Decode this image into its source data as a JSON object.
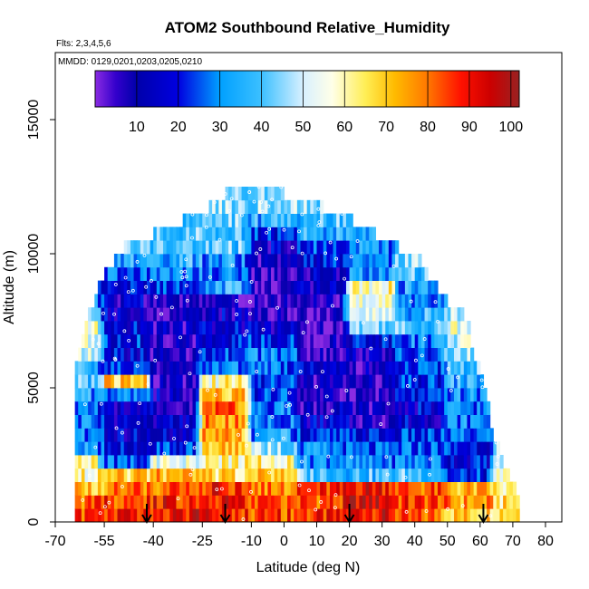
{
  "chart_data": {
    "type": "heatmap",
    "title": "ATOM2 Southbound Relative_Humidity",
    "flights_text": "Flts: 2,3,4,5,6",
    "dates_text": "MMDD: 0129,0201,0203,0205,0210",
    "xlabel": "Latitude (deg N)",
    "ylabel": "Altitude (m)",
    "xlim": [
      -70,
      85
    ],
    "ylim": [
      0,
      17500
    ],
    "x_ticks": [
      -70,
      -55,
      -40,
      -25,
      -10,
      0,
      10,
      20,
      30,
      40,
      50,
      60,
      70,
      80
    ],
    "x_tick_labels": [
      "-70",
      "-55",
      "-40",
      "-25",
      "-10",
      "0",
      "10",
      "20",
      "30",
      "40",
      "50",
      "60",
      "70",
      "80"
    ],
    "y_ticks": [
      0,
      5000,
      10000,
      15000
    ],
    "y_tick_labels": [
      "0",
      "5000",
      "10000",
      "15000"
    ],
    "colorbar": {
      "range": [
        0,
        102
      ],
      "ticks": [
        10,
        20,
        30,
        40,
        50,
        60,
        70,
        80,
        90,
        100
      ],
      "tick_labels": [
        "10",
        "20",
        "30",
        "40",
        "50",
        "60",
        "70",
        "80",
        "90",
        "100"
      ],
      "stops": [
        {
          "v": 0,
          "c": "#8a2be2"
        },
        {
          "v": 5,
          "c": "#3300cc"
        },
        {
          "v": 10,
          "c": "#0000aa"
        },
        {
          "v": 20,
          "c": "#0000e0"
        },
        {
          "v": 30,
          "c": "#00a0ff"
        },
        {
          "v": 40,
          "c": "#3cc0ff"
        },
        {
          "v": 50,
          "c": "#d8f0ff"
        },
        {
          "v": 57,
          "c": "#ffffe8"
        },
        {
          "v": 65,
          "c": "#ffee55"
        },
        {
          "v": 72,
          "c": "#ffbb00"
        },
        {
          "v": 80,
          "c": "#ff7700"
        },
        {
          "v": 88,
          "c": "#ff1100"
        },
        {
          "v": 95,
          "c": "#cc0000"
        },
        {
          "v": 102,
          "c": "#992222"
        }
      ]
    },
    "flight_markers_lat": [
      -42,
      -18,
      20,
      61
    ],
    "altitude_bins_m": [
      0,
      500,
      1000,
      1500,
      2000,
      2500,
      3000,
      3500,
      4000,
      4500,
      5000,
      5500,
      6000,
      6500,
      7000,
      7500,
      8000,
      8500,
      9000,
      9500,
      10000,
      10500,
      11000,
      11500,
      12000
    ],
    "coverage_by_bin": [
      [
        -64,
        72
      ],
      [
        -64,
        72
      ],
      [
        -64,
        71
      ],
      [
        -64,
        69
      ],
      [
        -64,
        67
      ],
      [
        -64,
        66
      ],
      [
        -64,
        64
      ],
      [
        -64,
        63
      ],
      [
        -64,
        63
      ],
      [
        -64,
        62
      ],
      [
        -64,
        61
      ],
      [
        -64,
        60
      ],
      [
        -63,
        58
      ],
      [
        -62,
        57
      ],
      [
        -61,
        57
      ],
      [
        -60,
        55
      ],
      [
        -58,
        50
      ],
      [
        -57,
        47
      ],
      [
        -55,
        44
      ],
      [
        -52,
        42
      ],
      [
        -49,
        35
      ],
      [
        -40,
        28
      ],
      [
        -31,
        21
      ],
      [
        -23,
        12
      ],
      [
        -18,
        0
      ]
    ],
    "humidity_profile": [
      {
        "lat_from": -65,
        "lat_to": -55,
        "values": [
          82,
          82,
          72,
          60,
          62,
          30,
          30,
          28,
          25,
          32,
          40,
          38,
          50,
          55,
          60,
          45,
          30,
          28,
          35,
          40,
          45,
          45,
          50,
          50,
          50
        ]
      },
      {
        "lat_from": -55,
        "lat_to": -40,
        "values": [
          88,
          85,
          78,
          68,
          25,
          18,
          15,
          14,
          14,
          28,
          68,
          22,
          16,
          20,
          18,
          14,
          12,
          20,
          25,
          35,
          40,
          40,
          42,
          45,
          45
        ]
      },
      {
        "lat_from": -40,
        "lat_to": -25,
        "values": [
          92,
          90,
          80,
          72,
          55,
          22,
          14,
          14,
          12,
          12,
          8,
          10,
          8,
          10,
          10,
          8,
          12,
          20,
          30,
          35,
          38,
          40,
          40,
          45,
          45
        ]
      },
      {
        "lat_from": -25,
        "lat_to": -10,
        "values": [
          90,
          90,
          88,
          65,
          60,
          72,
          75,
          78,
          80,
          72,
          60,
          30,
          22,
          20,
          15,
          12,
          10,
          35,
          30,
          32,
          40,
          40,
          42,
          45,
          45
        ]
      },
      {
        "lat_from": -10,
        "lat_to": 5,
        "values": [
          85,
          82,
          80,
          70,
          62,
          45,
          32,
          30,
          28,
          22,
          20,
          25,
          30,
          20,
          12,
          8,
          6,
          5,
          5,
          8,
          12,
          20,
          35,
          45,
          45
        ]
      },
      {
        "lat_from": 5,
        "lat_to": 20,
        "values": [
          86,
          84,
          85,
          40,
          32,
          28,
          20,
          14,
          10,
          8,
          10,
          12,
          10,
          8,
          5,
          5,
          8,
          10,
          12,
          18,
          25,
          35,
          40,
          45,
          45
        ]
      },
      {
        "lat_from": 20,
        "lat_to": 35,
        "values": [
          92,
          95,
          92,
          38,
          28,
          22,
          18,
          10,
          8,
          6,
          8,
          10,
          12,
          20,
          45,
          50,
          55,
          60,
          30,
          25,
          30,
          35,
          40,
          45,
          45
        ]
      },
      {
        "lat_from": 35,
        "lat_to": 50,
        "values": [
          80,
          85,
          82,
          40,
          30,
          25,
          20,
          15,
          15,
          18,
          20,
          20,
          22,
          30,
          40,
          35,
          30,
          32,
          40,
          45,
          45,
          45,
          45,
          45,
          45
        ]
      },
      {
        "lat_from": 50,
        "lat_to": 65,
        "values": [
          70,
          75,
          72,
          20,
          18,
          20,
          25,
          30,
          28,
          30,
          35,
          40,
          45,
          50,
          55,
          50,
          45,
          45,
          45,
          45,
          45,
          45,
          45,
          45,
          45
        ]
      },
      {
        "lat_from": 65,
        "lat_to": 72,
        "values": [
          70,
          65,
          60,
          55,
          50,
          45,
          45,
          45,
          45,
          45,
          45,
          45,
          45,
          45,
          45,
          45,
          45,
          45,
          45,
          45,
          45,
          45,
          45,
          45,
          45
        ]
      }
    ],
    "grid": false,
    "legend": "colorbar top, inside plot"
  }
}
